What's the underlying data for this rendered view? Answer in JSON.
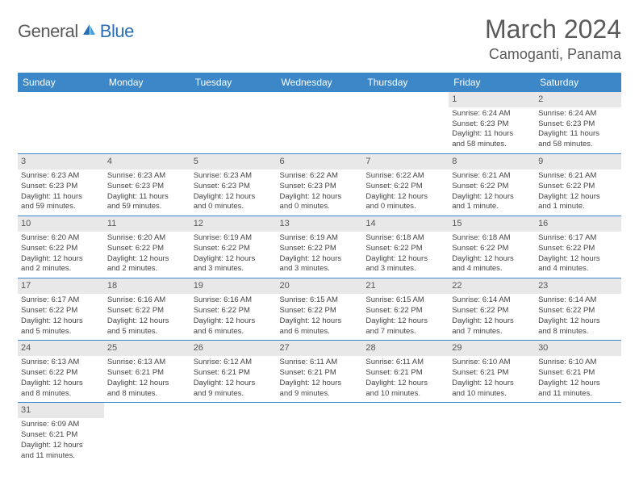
{
  "logo": {
    "text1": "General",
    "text2": "Blue"
  },
  "title": "March 2024",
  "location": "Camoganti, Panama",
  "colors": {
    "header_bg": "#3b87c8",
    "header_text": "#ffffff",
    "daynum_bg": "#e8e8e8",
    "border": "#3b87c8",
    "logo_gray": "#5a5a5a",
    "logo_blue": "#2a6fb5"
  },
  "day_headers": [
    "Sunday",
    "Monday",
    "Tuesday",
    "Wednesday",
    "Thursday",
    "Friday",
    "Saturday"
  ],
  "weeks": [
    [
      {
        "n": "",
        "lines": []
      },
      {
        "n": "",
        "lines": []
      },
      {
        "n": "",
        "lines": []
      },
      {
        "n": "",
        "lines": []
      },
      {
        "n": "",
        "lines": []
      },
      {
        "n": "1",
        "lines": [
          "Sunrise: 6:24 AM",
          "Sunset: 6:23 PM",
          "Daylight: 11 hours",
          "and 58 minutes."
        ]
      },
      {
        "n": "2",
        "lines": [
          "Sunrise: 6:24 AM",
          "Sunset: 6:23 PM",
          "Daylight: 11 hours",
          "and 58 minutes."
        ]
      }
    ],
    [
      {
        "n": "3",
        "lines": [
          "Sunrise: 6:23 AM",
          "Sunset: 6:23 PM",
          "Daylight: 11 hours",
          "and 59 minutes."
        ]
      },
      {
        "n": "4",
        "lines": [
          "Sunrise: 6:23 AM",
          "Sunset: 6:23 PM",
          "Daylight: 11 hours",
          "and 59 minutes."
        ]
      },
      {
        "n": "5",
        "lines": [
          "Sunrise: 6:23 AM",
          "Sunset: 6:23 PM",
          "Daylight: 12 hours",
          "and 0 minutes."
        ]
      },
      {
        "n": "6",
        "lines": [
          "Sunrise: 6:22 AM",
          "Sunset: 6:23 PM",
          "Daylight: 12 hours",
          "and 0 minutes."
        ]
      },
      {
        "n": "7",
        "lines": [
          "Sunrise: 6:22 AM",
          "Sunset: 6:22 PM",
          "Daylight: 12 hours",
          "and 0 minutes."
        ]
      },
      {
        "n": "8",
        "lines": [
          "Sunrise: 6:21 AM",
          "Sunset: 6:22 PM",
          "Daylight: 12 hours",
          "and 1 minute."
        ]
      },
      {
        "n": "9",
        "lines": [
          "Sunrise: 6:21 AM",
          "Sunset: 6:22 PM",
          "Daylight: 12 hours",
          "and 1 minute."
        ]
      }
    ],
    [
      {
        "n": "10",
        "lines": [
          "Sunrise: 6:20 AM",
          "Sunset: 6:22 PM",
          "Daylight: 12 hours",
          "and 2 minutes."
        ]
      },
      {
        "n": "11",
        "lines": [
          "Sunrise: 6:20 AM",
          "Sunset: 6:22 PM",
          "Daylight: 12 hours",
          "and 2 minutes."
        ]
      },
      {
        "n": "12",
        "lines": [
          "Sunrise: 6:19 AM",
          "Sunset: 6:22 PM",
          "Daylight: 12 hours",
          "and 3 minutes."
        ]
      },
      {
        "n": "13",
        "lines": [
          "Sunrise: 6:19 AM",
          "Sunset: 6:22 PM",
          "Daylight: 12 hours",
          "and 3 minutes."
        ]
      },
      {
        "n": "14",
        "lines": [
          "Sunrise: 6:18 AM",
          "Sunset: 6:22 PM",
          "Daylight: 12 hours",
          "and 3 minutes."
        ]
      },
      {
        "n": "15",
        "lines": [
          "Sunrise: 6:18 AM",
          "Sunset: 6:22 PM",
          "Daylight: 12 hours",
          "and 4 minutes."
        ]
      },
      {
        "n": "16",
        "lines": [
          "Sunrise: 6:17 AM",
          "Sunset: 6:22 PM",
          "Daylight: 12 hours",
          "and 4 minutes."
        ]
      }
    ],
    [
      {
        "n": "17",
        "lines": [
          "Sunrise: 6:17 AM",
          "Sunset: 6:22 PM",
          "Daylight: 12 hours",
          "and 5 minutes."
        ]
      },
      {
        "n": "18",
        "lines": [
          "Sunrise: 6:16 AM",
          "Sunset: 6:22 PM",
          "Daylight: 12 hours",
          "and 5 minutes."
        ]
      },
      {
        "n": "19",
        "lines": [
          "Sunrise: 6:16 AM",
          "Sunset: 6:22 PM",
          "Daylight: 12 hours",
          "and 6 minutes."
        ]
      },
      {
        "n": "20",
        "lines": [
          "Sunrise: 6:15 AM",
          "Sunset: 6:22 PM",
          "Daylight: 12 hours",
          "and 6 minutes."
        ]
      },
      {
        "n": "21",
        "lines": [
          "Sunrise: 6:15 AM",
          "Sunset: 6:22 PM",
          "Daylight: 12 hours",
          "and 7 minutes."
        ]
      },
      {
        "n": "22",
        "lines": [
          "Sunrise: 6:14 AM",
          "Sunset: 6:22 PM",
          "Daylight: 12 hours",
          "and 7 minutes."
        ]
      },
      {
        "n": "23",
        "lines": [
          "Sunrise: 6:14 AM",
          "Sunset: 6:22 PM",
          "Daylight: 12 hours",
          "and 8 minutes."
        ]
      }
    ],
    [
      {
        "n": "24",
        "lines": [
          "Sunrise: 6:13 AM",
          "Sunset: 6:22 PM",
          "Daylight: 12 hours",
          "and 8 minutes."
        ]
      },
      {
        "n": "25",
        "lines": [
          "Sunrise: 6:13 AM",
          "Sunset: 6:21 PM",
          "Daylight: 12 hours",
          "and 8 minutes."
        ]
      },
      {
        "n": "26",
        "lines": [
          "Sunrise: 6:12 AM",
          "Sunset: 6:21 PM",
          "Daylight: 12 hours",
          "and 9 minutes."
        ]
      },
      {
        "n": "27",
        "lines": [
          "Sunrise: 6:11 AM",
          "Sunset: 6:21 PM",
          "Daylight: 12 hours",
          "and 9 minutes."
        ]
      },
      {
        "n": "28",
        "lines": [
          "Sunrise: 6:11 AM",
          "Sunset: 6:21 PM",
          "Daylight: 12 hours",
          "and 10 minutes."
        ]
      },
      {
        "n": "29",
        "lines": [
          "Sunrise: 6:10 AM",
          "Sunset: 6:21 PM",
          "Daylight: 12 hours",
          "and 10 minutes."
        ]
      },
      {
        "n": "30",
        "lines": [
          "Sunrise: 6:10 AM",
          "Sunset: 6:21 PM",
          "Daylight: 12 hours",
          "and 11 minutes."
        ]
      }
    ],
    [
      {
        "n": "31",
        "lines": [
          "Sunrise: 6:09 AM",
          "Sunset: 6:21 PM",
          "Daylight: 12 hours",
          "and 11 minutes."
        ]
      },
      {
        "n": "",
        "lines": []
      },
      {
        "n": "",
        "lines": []
      },
      {
        "n": "",
        "lines": []
      },
      {
        "n": "",
        "lines": []
      },
      {
        "n": "",
        "lines": []
      },
      {
        "n": "",
        "lines": []
      }
    ]
  ]
}
